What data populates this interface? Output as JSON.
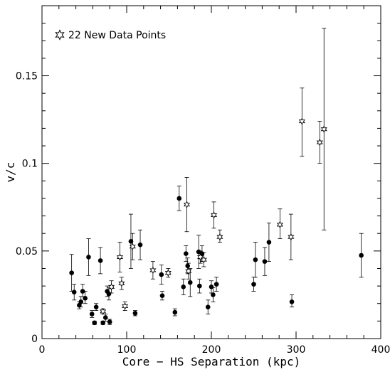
{
  "chart_data": {
    "type": "scatter",
    "title": "",
    "xlabel": "Core − HS Separation (kpc)",
    "ylabel": "v/c",
    "xlim": [
      0,
      400
    ],
    "ylim": [
      0,
      0.19
    ],
    "x_ticks": [
      0,
      100,
      200,
      300,
      400
    ],
    "x_tick_labels": [
      "0",
      "100",
      "200",
      "300",
      "400"
    ],
    "y_ticks": [
      0,
      0.05,
      0.1,
      0.15
    ],
    "y_tick_labels": [
      "0",
      "0.05",
      "0.1",
      "0.15"
    ],
    "grid": false,
    "legend": {
      "placement": "top-left",
      "label": "22 New Data Points"
    },
    "series": [
      {
        "marker": "filled-circle",
        "points": [
          {
            "x": 35,
            "y": 0.0375,
            "lo": 0.027,
            "hi": 0.048
          },
          {
            "x": 38,
            "y": 0.0265,
            "lo": 0.022,
            "hi": 0.031
          },
          {
            "x": 44,
            "y": 0.019,
            "lo": 0.017,
            "hi": 0.021
          },
          {
            "x": 46,
            "y": 0.021,
            "lo": 0.018,
            "hi": 0.024
          },
          {
            "x": 48,
            "y": 0.027,
            "lo": 0.024,
            "hi": 0.031
          },
          {
            "x": 51,
            "y": 0.023,
            "lo": 0.02,
            "hi": 0.027
          },
          {
            "x": 55,
            "y": 0.0465,
            "lo": 0.036,
            "hi": 0.057
          },
          {
            "x": 59,
            "y": 0.014,
            "lo": 0.012,
            "hi": 0.016
          },
          {
            "x": 62,
            "y": 0.009,
            "lo": 0.008,
            "hi": 0.01
          },
          {
            "x": 64,
            "y": 0.018,
            "lo": 0.016,
            "hi": 0.02
          },
          {
            "x": 69,
            "y": 0.0445,
            "lo": 0.037,
            "hi": 0.052
          },
          {
            "x": 72,
            "y": 0.009,
            "lo": 0.008,
            "hi": 0.01
          },
          {
            "x": 75,
            "y": 0.012,
            "lo": 0.01,
            "hi": 0.014
          },
          {
            "x": 77,
            "y": 0.027,
            "lo": 0.024,
            "hi": 0.03
          },
          {
            "x": 79,
            "y": 0.0255,
            "lo": 0.022,
            "hi": 0.029
          },
          {
            "x": 80,
            "y": 0.0095,
            "lo": 0.008,
            "hi": 0.011
          },
          {
            "x": 105,
            "y": 0.0555,
            "lo": 0.04,
            "hi": 0.071
          },
          {
            "x": 110,
            "y": 0.0145,
            "lo": 0.013,
            "hi": 0.016
          },
          {
            "x": 116,
            "y": 0.0535,
            "lo": 0.045,
            "hi": 0.062
          },
          {
            "x": 141,
            "y": 0.0365,
            "lo": 0.031,
            "hi": 0.042
          },
          {
            "x": 142,
            "y": 0.0245,
            "lo": 0.022,
            "hi": 0.027
          },
          {
            "x": 157,
            "y": 0.015,
            "lo": 0.013,
            "hi": 0.017
          },
          {
            "x": 162,
            "y": 0.08,
            "lo": 0.073,
            "hi": 0.087
          },
          {
            "x": 167,
            "y": 0.0295,
            "lo": 0.025,
            "hi": 0.034
          },
          {
            "x": 170,
            "y": 0.0485,
            "lo": 0.044,
            "hi": 0.053
          },
          {
            "x": 172,
            "y": 0.0415,
            "lo": 0.037,
            "hi": 0.046
          },
          {
            "x": 175,
            "y": 0.032,
            "lo": 0.024,
            "hi": 0.04
          },
          {
            "x": 185,
            "y": 0.0495,
            "lo": 0.04,
            "hi": 0.059
          },
          {
            "x": 186,
            "y": 0.03,
            "lo": 0.026,
            "hi": 0.034
          },
          {
            "x": 189,
            "y": 0.0485,
            "lo": 0.044,
            "hi": 0.053
          },
          {
            "x": 196,
            "y": 0.018,
            "lo": 0.014,
            "hi": 0.022
          },
          {
            "x": 200,
            "y": 0.0295,
            "lo": 0.026,
            "hi": 0.033
          },
          {
            "x": 202,
            "y": 0.025,
            "lo": 0.021,
            "hi": 0.029
          },
          {
            "x": 206,
            "y": 0.031,
            "lo": 0.027,
            "hi": 0.035
          },
          {
            "x": 250,
            "y": 0.031,
            "lo": 0.027,
            "hi": 0.035
          },
          {
            "x": 252,
            "y": 0.045,
            "lo": 0.035,
            "hi": 0.055
          },
          {
            "x": 263,
            "y": 0.044,
            "lo": 0.036,
            "hi": 0.052
          },
          {
            "x": 268,
            "y": 0.055,
            "lo": 0.044,
            "hi": 0.066
          },
          {
            "x": 295,
            "y": 0.021,
            "lo": 0.018,
            "hi": 0.025
          },
          {
            "x": 377,
            "y": 0.0475,
            "lo": 0.035,
            "hi": 0.06
          }
        ]
      },
      {
        "marker": "open-star",
        "points": [
          {
            "x": 72,
            "y": 0.0155,
            "lo": 0.014,
            "hi": 0.017
          },
          {
            "x": 82,
            "y": 0.0295,
            "lo": 0.026,
            "hi": 0.033
          },
          {
            "x": 92,
            "y": 0.0465,
            "lo": 0.038,
            "hi": 0.055
          },
          {
            "x": 94,
            "y": 0.0315,
            "lo": 0.028,
            "hi": 0.035
          },
          {
            "x": 98,
            "y": 0.0185,
            "lo": 0.016,
            "hi": 0.021
          },
          {
            "x": 107,
            "y": 0.0525,
            "lo": 0.045,
            "hi": 0.06
          },
          {
            "x": 131,
            "y": 0.039,
            "lo": 0.034,
            "hi": 0.044
          },
          {
            "x": 149,
            "y": 0.0375,
            "lo": 0.035,
            "hi": 0.04
          },
          {
            "x": 171,
            "y": 0.0765,
            "lo": 0.061,
            "hi": 0.092
          },
          {
            "x": 173,
            "y": 0.0385,
            "lo": 0.034,
            "hi": 0.043
          },
          {
            "x": 187,
            "y": 0.0465,
            "lo": 0.043,
            "hi": 0.05
          },
          {
            "x": 191,
            "y": 0.045,
            "lo": 0.041,
            "hi": 0.049
          },
          {
            "x": 203,
            "y": 0.0705,
            "lo": 0.063,
            "hi": 0.078
          },
          {
            "x": 210,
            "y": 0.058,
            "lo": 0.055,
            "hi": 0.062
          },
          {
            "x": 281,
            "y": 0.065,
            "lo": 0.057,
            "hi": 0.074
          },
          {
            "x": 294,
            "y": 0.058,
            "lo": 0.045,
            "hi": 0.071
          },
          {
            "x": 307,
            "y": 0.124,
            "lo": 0.104,
            "hi": 0.143
          },
          {
            "x": 328,
            "y": 0.112,
            "lo": 0.1,
            "hi": 0.124
          },
          {
            "x": 333,
            "y": 0.1195,
            "lo": 0.062,
            "hi": 0.177
          }
        ]
      }
    ]
  }
}
